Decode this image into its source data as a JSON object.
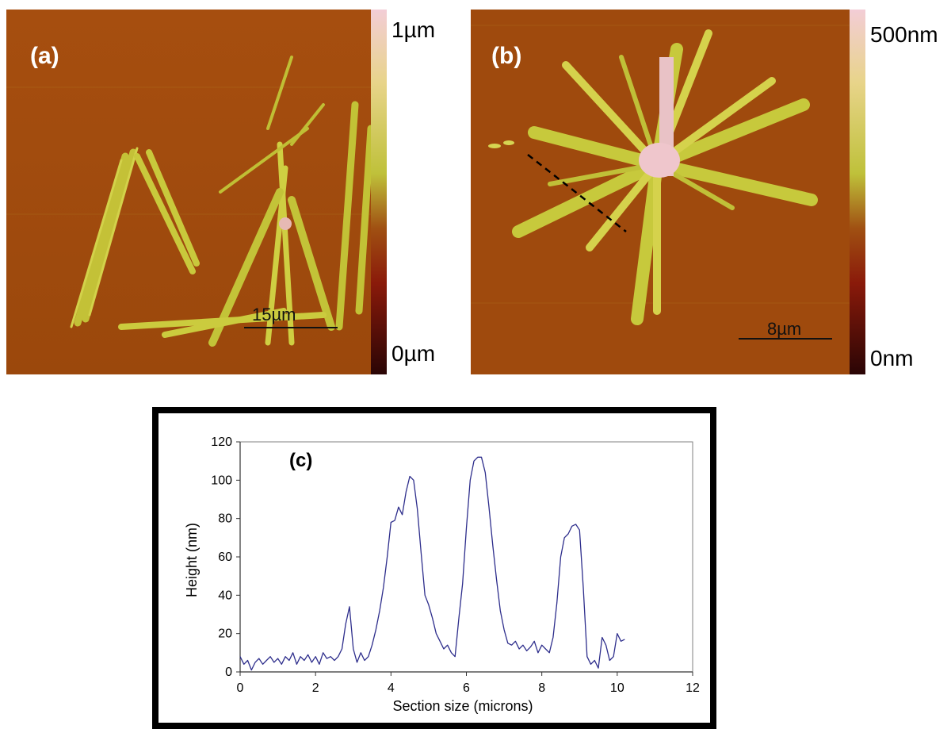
{
  "panels": {
    "a": {
      "label": "(a)",
      "colorbar_max": "1µm",
      "colorbar_min": "0µm",
      "scale_bar": "15µm"
    },
    "b": {
      "label": "(b)",
      "colorbar_max": "500nm",
      "colorbar_min": "0nm",
      "scale_bar": "8µm"
    }
  },
  "colors": {
    "afm_background": "#9e4a0c",
    "afm_feature": "#c8cc3a",
    "afm_high": "#eecbd0",
    "colorbar_top": "#f3cdd6",
    "colorbar_mid": "#bfc13a",
    "colorbar_low": "#8a1a0a",
    "colorbar_bottom": "#2a0505",
    "line_series": "#2e2e8c"
  },
  "chart_data": {
    "type": "line",
    "panel_label": "(c)",
    "xlabel": "Section size (microns)",
    "ylabel": "Height (nm)",
    "xlim": [
      0,
      12
    ],
    "ylim": [
      0,
      120
    ],
    "x_ticks": [
      "0",
      "2",
      "4",
      "6",
      "8",
      "10",
      "12"
    ],
    "y_ticks": [
      "0",
      "20",
      "40",
      "60",
      "80",
      "100",
      "120"
    ],
    "grid": false,
    "series": [
      {
        "x": [
          0.0,
          0.1,
          0.2,
          0.3,
          0.4,
          0.5,
          0.6,
          0.7,
          0.8,
          0.9,
          1.0,
          1.1,
          1.2,
          1.3,
          1.4,
          1.5,
          1.6,
          1.7,
          1.8,
          1.9,
          2.0,
          2.1,
          2.2,
          2.3,
          2.4,
          2.5,
          2.6,
          2.7,
          2.8,
          2.9,
          3.0,
          3.1,
          3.2,
          3.3,
          3.4,
          3.5,
          3.6,
          3.7,
          3.8,
          3.9,
          4.0,
          4.1,
          4.2,
          4.3,
          4.4,
          4.5,
          4.6,
          4.7,
          4.8,
          4.9,
          5.0,
          5.1,
          5.2,
          5.3,
          5.4,
          5.5,
          5.6,
          5.7,
          5.8,
          5.9,
          6.0,
          6.1,
          6.2,
          6.3,
          6.4,
          6.5,
          6.6,
          6.7,
          6.8,
          6.9,
          7.0,
          7.1,
          7.2,
          7.3,
          7.4,
          7.5,
          7.6,
          7.7,
          7.8,
          7.9,
          8.0,
          8.1,
          8.2,
          8.3,
          8.4,
          8.5,
          8.6,
          8.7,
          8.8,
          8.9,
          9.0,
          9.1,
          9.2,
          9.3,
          9.4,
          9.5,
          9.6,
          9.7,
          9.8,
          9.9,
          10.0,
          10.1,
          10.2
        ],
        "y": [
          8,
          4,
          6,
          1,
          5,
          7,
          4,
          6,
          8,
          5,
          7,
          4,
          8,
          6,
          10,
          4,
          8,
          6,
          9,
          5,
          8,
          4,
          10,
          7,
          8,
          6,
          8,
          12,
          25,
          34,
          12,
          5,
          10,
          6,
          8,
          14,
          22,
          32,
          44,
          60,
          78,
          79,
          86,
          82,
          94,
          102,
          100,
          85,
          62,
          40,
          35,
          28,
          20,
          16,
          12,
          14,
          10,
          8,
          28,
          46,
          75,
          100,
          110,
          112,
          112,
          104,
          86,
          66,
          48,
          32,
          22,
          15,
          14,
          16,
          12,
          14,
          11,
          13,
          16,
          10,
          14,
          12,
          10,
          18,
          36,
          60,
          70,
          72,
          76,
          77,
          74,
          44,
          8,
          4,
          6,
          2,
          18,
          14,
          6,
          8,
          20,
          16,
          17
        ]
      }
    ]
  }
}
